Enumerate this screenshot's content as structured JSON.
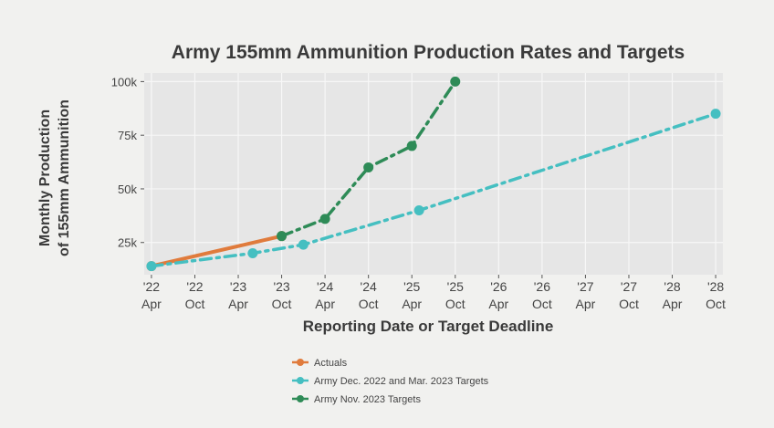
{
  "chart_data": {
    "type": "line",
    "title": "Army 155mm Ammunition Production Rates and Targets",
    "xlabel": "Reporting Date or Target Deadline",
    "ylabel": [
      "Monthly Production",
      "of 155mm Ammunition"
    ],
    "x_ticks": [
      {
        "year": "'22",
        "month": "Apr",
        "date": "2022-04"
      },
      {
        "year": "'22",
        "month": "Oct",
        "date": "2022-10"
      },
      {
        "year": "'23",
        "month": "Apr",
        "date": "2023-04"
      },
      {
        "year": "'23",
        "month": "Oct",
        "date": "2023-10"
      },
      {
        "year": "'24",
        "month": "Apr",
        "date": "2024-04"
      },
      {
        "year": "'24",
        "month": "Oct",
        "date": "2024-10"
      },
      {
        "year": "'25",
        "month": "Apr",
        "date": "2025-04"
      },
      {
        "year": "'25",
        "month": "Oct",
        "date": "2025-10"
      },
      {
        "year": "'26",
        "month": "Apr",
        "date": "2026-04"
      },
      {
        "year": "'26",
        "month": "Oct",
        "date": "2026-10"
      },
      {
        "year": "'27",
        "month": "Apr",
        "date": "2027-04"
      },
      {
        "year": "'27",
        "month": "Oct",
        "date": "2027-10"
      },
      {
        "year": "'28",
        "month": "Apr",
        "date": "2028-04"
      },
      {
        "year": "'28",
        "month": "Oct",
        "date": "2028-10"
      }
    ],
    "y_ticks": [
      {
        "value": 25000,
        "label": "25k"
      },
      {
        "value": 50000,
        "label": "50k"
      },
      {
        "value": 75000,
        "label": "75k"
      },
      {
        "value": 100000,
        "label": "100k"
      }
    ],
    "xlim": [
      "2022-03",
      "2028-11"
    ],
    "ylim": [
      10000,
      104000
    ],
    "grid": true,
    "legend_position": "bottom",
    "series": [
      {
        "name": "Actuals",
        "color": "#e07b3c",
        "line_style": "solid",
        "points": [
          {
            "x": "2022-04",
            "y": 14000
          },
          {
            "x": "2023-10",
            "y": 28000
          }
        ]
      },
      {
        "name": "Army Dec. 2022 and Mar. 2023 Targets",
        "color": "#45bfc1",
        "line_style": "dashdot",
        "points": [
          {
            "x": "2022-04",
            "y": 14000
          },
          {
            "x": "2023-06",
            "y": 20000
          },
          {
            "x": "2024-01",
            "y": 24000
          },
          {
            "x": "2025-05",
            "y": 40000
          },
          {
            "x": "2028-10",
            "y": 85000
          }
        ]
      },
      {
        "name": "Army Nov. 2023 Targets",
        "color": "#2e8b57",
        "line_style": "dashdot",
        "points": [
          {
            "x": "2023-10",
            "y": 28000
          },
          {
            "x": "2024-04",
            "y": 36000
          },
          {
            "x": "2024-10",
            "y": 60000
          },
          {
            "x": "2025-04",
            "y": 70000
          },
          {
            "x": "2025-10",
            "y": 100000
          }
        ]
      }
    ]
  }
}
